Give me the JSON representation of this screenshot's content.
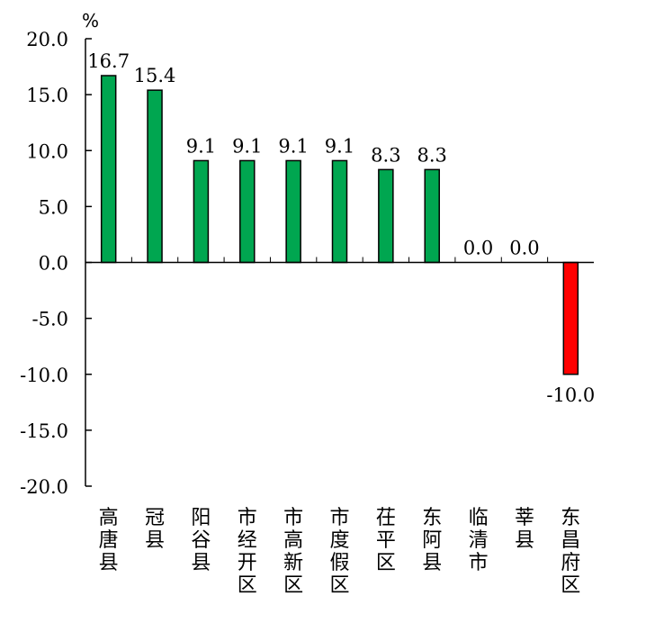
{
  "chart_data": {
    "type": "bar",
    "title": "",
    "xlabel": "",
    "ylabel": "%",
    "ylim": [
      -20,
      20
    ],
    "yticks": [
      20,
      15,
      10,
      5,
      0,
      -5,
      -10,
      -15,
      -20
    ],
    "ytick_labels": [
      "20.0",
      "15.0",
      "10.0",
      "5.0",
      "0.0",
      "-5.0",
      "-10.0",
      "-15.0",
      "-20.0"
    ],
    "categories": [
      "高唐县",
      "冠县",
      "阳谷县",
      "市经开区",
      "市高新区",
      "市度假区",
      "茌平区",
      "东阿县",
      "临清市",
      "莘县",
      "东昌府区"
    ],
    "values": [
      16.7,
      15.4,
      9.1,
      9.1,
      9.1,
      9.1,
      8.3,
      8.3,
      0.0,
      0.0,
      -10.0
    ],
    "value_labels": [
      "16.7",
      "15.4",
      "9.1",
      "9.1",
      "9.1",
      "9.1",
      "8.3",
      "8.3",
      "0.0",
      "0.0",
      "-10.0"
    ],
    "positive_color": "#00A650",
    "negative_color": "#FF0000",
    "grid": false,
    "legend": "none"
  }
}
